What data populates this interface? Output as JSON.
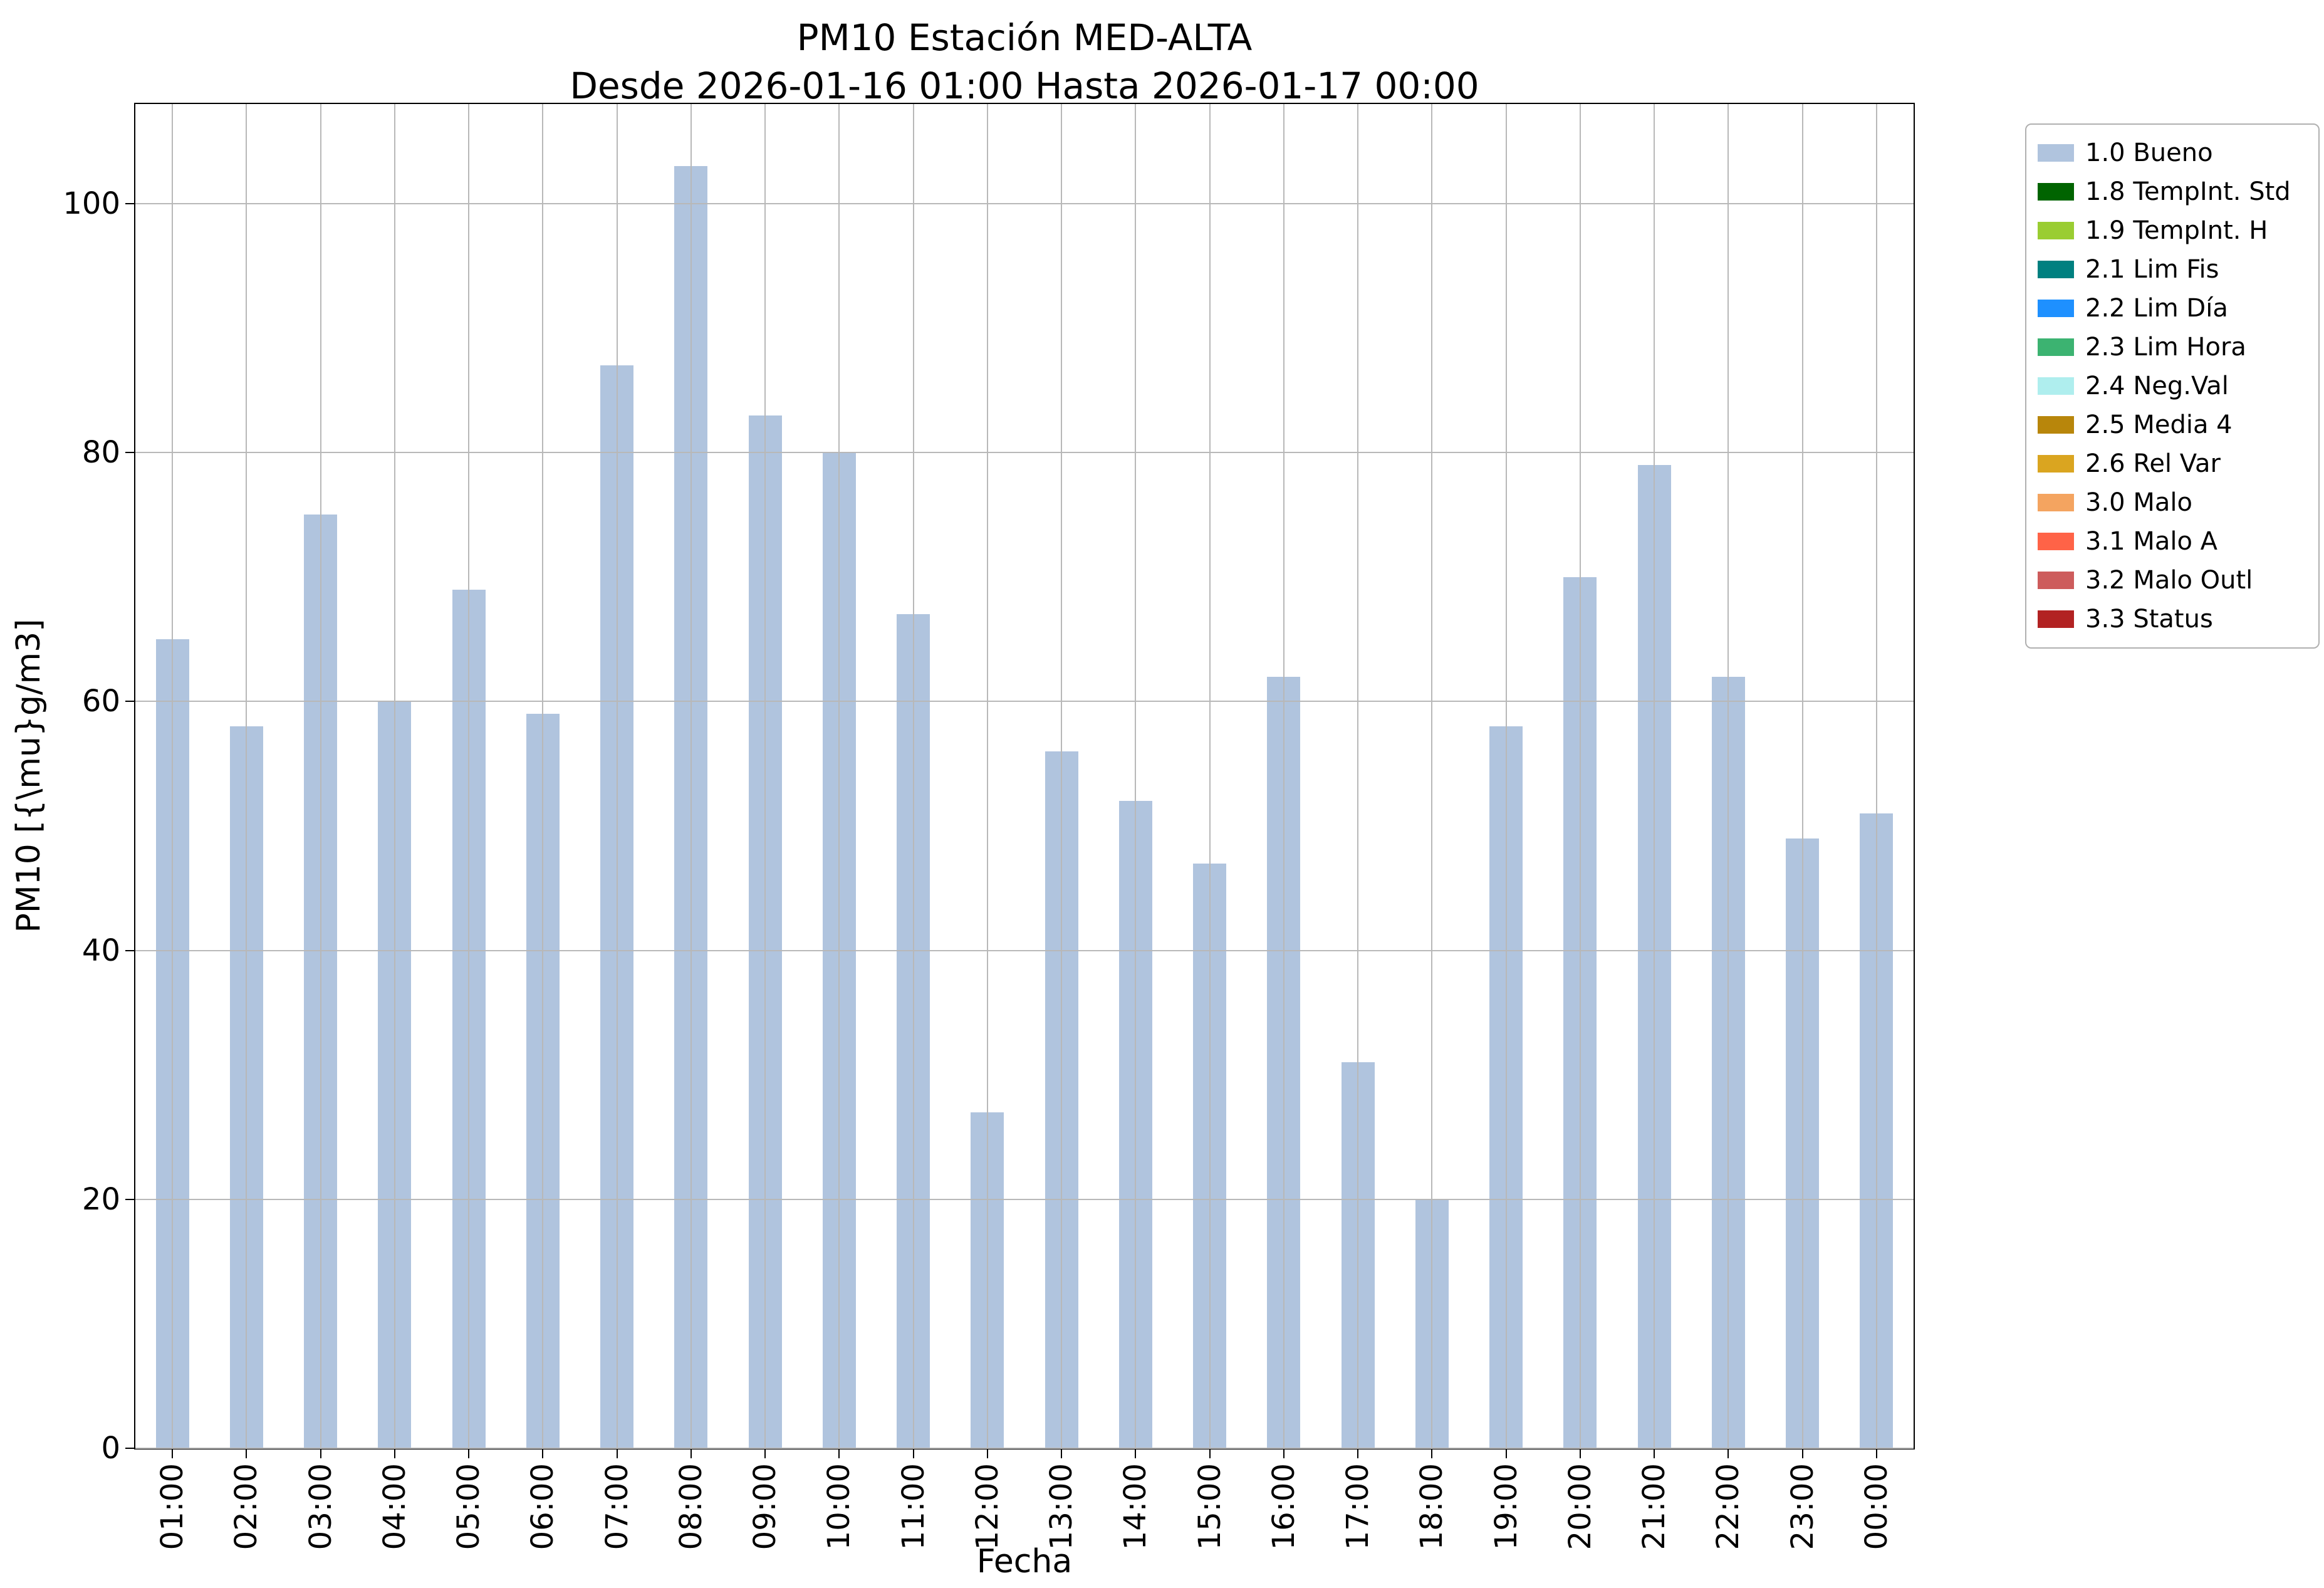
{
  "chart_data": {
    "type": "bar",
    "title": "PM10 Estación MED-ALTA",
    "subtitle": "Desde 2026-01-16 01:00 Hasta 2026-01-17 00:00",
    "xlabel": "Fecha",
    "ylabel": "PM10 [{\\mu}g/m3]",
    "categories": [
      "01:00",
      "02:00",
      "03:00",
      "04:00",
      "05:00",
      "06:00",
      "07:00",
      "08:00",
      "09:00",
      "10:00",
      "11:00",
      "12:00",
      "13:00",
      "14:00",
      "15:00",
      "16:00",
      "17:00",
      "18:00",
      "19:00",
      "20:00",
      "21:00",
      "22:00",
      "23:00",
      "00:00"
    ],
    "values": [
      65,
      58,
      75,
      60,
      69,
      59,
      87,
      103,
      83,
      80,
      67,
      27,
      56,
      52,
      47,
      62,
      31,
      20,
      58,
      70,
      79,
      62,
      49,
      51
    ],
    "yticks": [
      0,
      20,
      40,
      60,
      80,
      100
    ],
    "ylim": [
      0,
      108
    ],
    "grid": true,
    "bar_color": "#b0c4de",
    "legend_position": "outside-right",
    "legend": [
      {
        "label": "1.0 Bueno",
        "color": "#b0c4de"
      },
      {
        "label": "1.8 TempInt. Std",
        "color": "#006400"
      },
      {
        "label": "1.9 TempInt. H",
        "color": "#9acd32"
      },
      {
        "label": "2.1 Lim Fis",
        "color": "#008080"
      },
      {
        "label": "2.2 Lim Día",
        "color": "#1e90ff"
      },
      {
        "label": "2.3 Lim Hora",
        "color": "#3cb371"
      },
      {
        "label": "2.4 Neg.Val",
        "color": "#afeeee"
      },
      {
        "label": "2.5 Media 4",
        "color": "#b8860b"
      },
      {
        "label": "2.6 Rel Var",
        "color": "#daa520"
      },
      {
        "label": "3.0 Malo",
        "color": "#f4a460"
      },
      {
        "label": "3.1 Malo A",
        "color": "#ff6347"
      },
      {
        "label": "3.2 Malo Outl",
        "color": "#cd5c5c"
      },
      {
        "label": "3.3 Status",
        "color": "#b22222"
      }
    ]
  }
}
